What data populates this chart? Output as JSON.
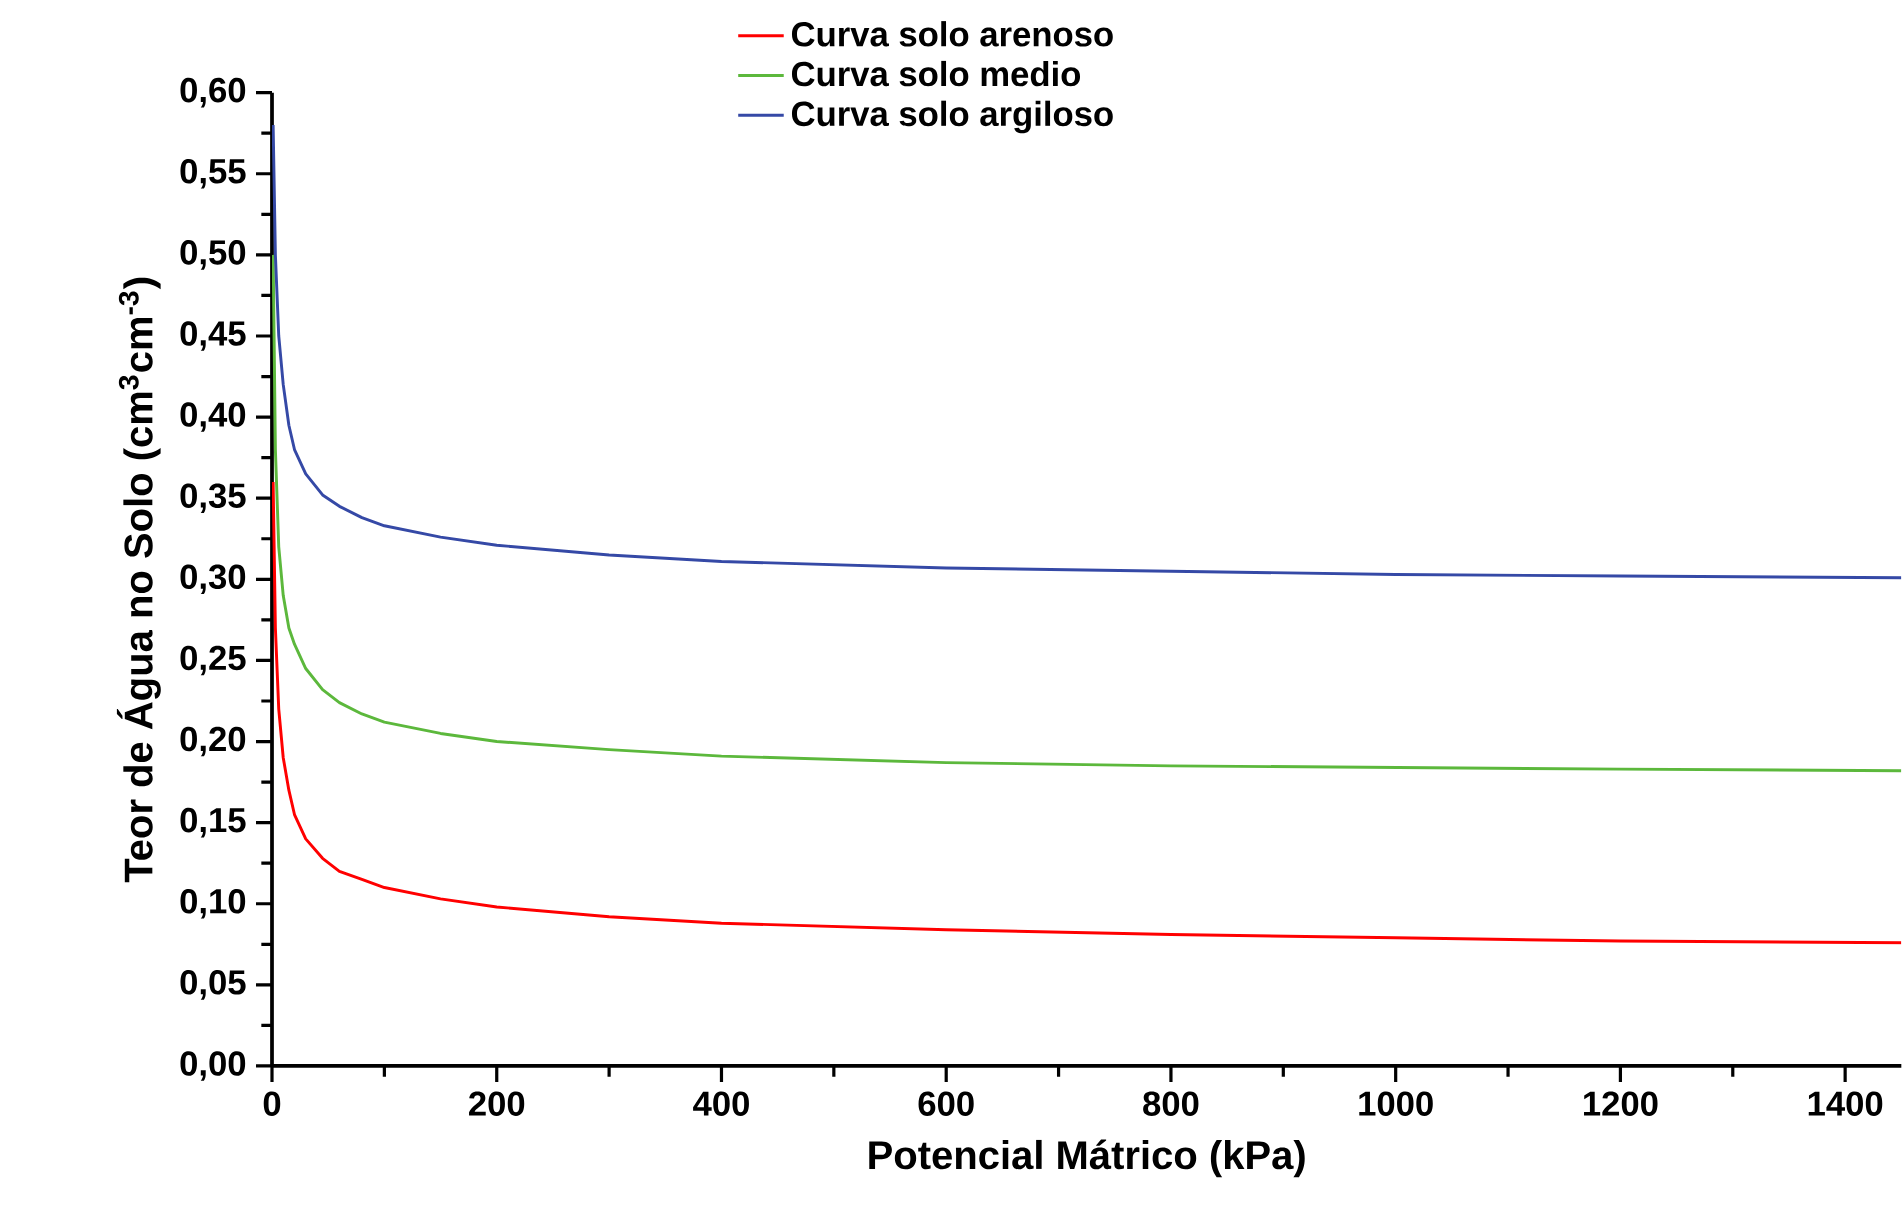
{
  "chart_data": {
    "type": "line",
    "xlabel": "Potencial Mátrico (kPa)",
    "ylabel": "Teor de Água no Solo (cm$^{3}$cm$^{-3}$)",
    "xlim": [
      0,
      1450
    ],
    "ylim": [
      0,
      0.6
    ],
    "xticks": [
      0,
      200,
      400,
      600,
      800,
      1000,
      1200,
      1400
    ],
    "yticks": [
      {
        "value": 0,
        "label": "0,00"
      },
      {
        "value": 0.05,
        "label": "0,05"
      },
      {
        "value": 0.1,
        "label": "0,10"
      },
      {
        "value": 0.15,
        "label": "0,15"
      },
      {
        "value": 0.2,
        "label": "0,20"
      },
      {
        "value": 0.25,
        "label": "0,25"
      },
      {
        "value": 0.3,
        "label": "0,30"
      },
      {
        "value": 0.35,
        "label": "0,35"
      },
      {
        "value": 0.4,
        "label": "0,40"
      },
      {
        "value": 0.45,
        "label": "0,45"
      },
      {
        "value": 0.5,
        "label": "0,50"
      },
      {
        "value": 0.55,
        "label": "0,55"
      },
      {
        "value": 0.6,
        "label": "0,60"
      }
    ],
    "x": [
      1,
      3,
      6,
      10,
      15,
      20,
      30,
      45,
      60,
      80,
      100,
      150,
      200,
      300,
      400,
      600,
      800,
      1000,
      1200,
      1450
    ],
    "legend": "top",
    "grid": false,
    "marker": "none",
    "line_style": "solid",
    "series": [
      {
        "name": "Curva solo arenoso",
        "color": "#ff0000",
        "values": [
          0.36,
          0.27,
          0.22,
          0.19,
          0.17,
          0.155,
          0.14,
          0.128,
          0.12,
          0.115,
          0.11,
          0.103,
          0.098,
          0.092,
          0.088,
          0.084,
          0.081,
          0.079,
          0.077,
          0.076
        ]
      },
      {
        "name": "Curva solo medio",
        "color": "#5cb83c",
        "values": [
          0.5,
          0.38,
          0.32,
          0.29,
          0.27,
          0.26,
          0.245,
          0.232,
          0.224,
          0.217,
          0.212,
          0.205,
          0.2,
          0.195,
          0.191,
          0.187,
          0.185,
          0.184,
          0.183,
          0.182
        ]
      },
      {
        "name": "Curva solo argiloso",
        "color": "#3549a6",
        "values": [
          0.58,
          0.5,
          0.45,
          0.42,
          0.395,
          0.38,
          0.365,
          0.352,
          0.345,
          0.338,
          0.333,
          0.326,
          0.321,
          0.315,
          0.311,
          0.307,
          0.305,
          0.303,
          0.302,
          0.301
        ]
      }
    ]
  }
}
